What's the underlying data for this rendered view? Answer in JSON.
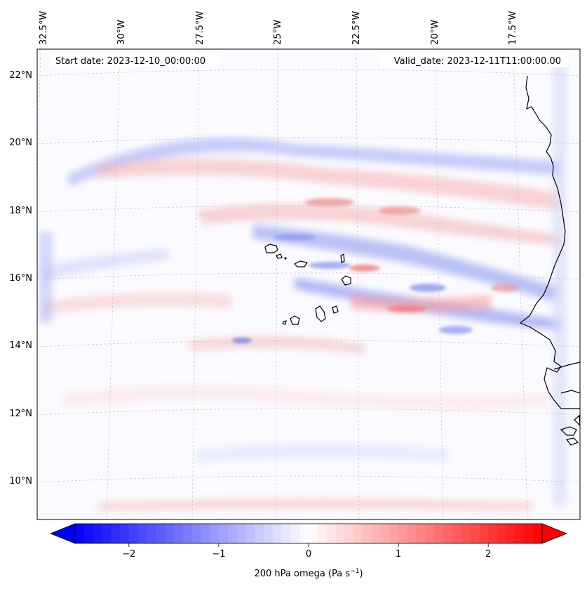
{
  "header": {
    "start_date": "Start date: 2023-12-10_00:00:00",
    "valid_date": "Valid_date: 2023-12-11T11:00:00.00"
  },
  "map": {
    "projection": "conic",
    "lon_labels": [
      "32.5°W",
      "30°W",
      "27.5°W",
      "25°W",
      "22.5°W",
      "20°W",
      "17.5°W"
    ],
    "lat_labels": [
      "22°N",
      "20°N",
      "18°N",
      "16°N",
      "14°N",
      "12°N",
      "10°N"
    ],
    "gridlines": true,
    "colormap": "bwr",
    "land_outline_color": "#000000"
  },
  "colorbar": {
    "label": "200 hPa omega (Pa s",
    "label_sup": "−1",
    "label_end": ")",
    "tick_labels": [
      "−2",
      "−1",
      "0",
      "1",
      "2"
    ],
    "ticks": [
      -2,
      -1,
      0,
      1,
      2
    ],
    "range": [
      -2.6,
      2.6
    ],
    "extend": "both",
    "low_color": "#0000ff",
    "mid_color": "#ffffff",
    "high_color": "#ff0000"
  }
}
